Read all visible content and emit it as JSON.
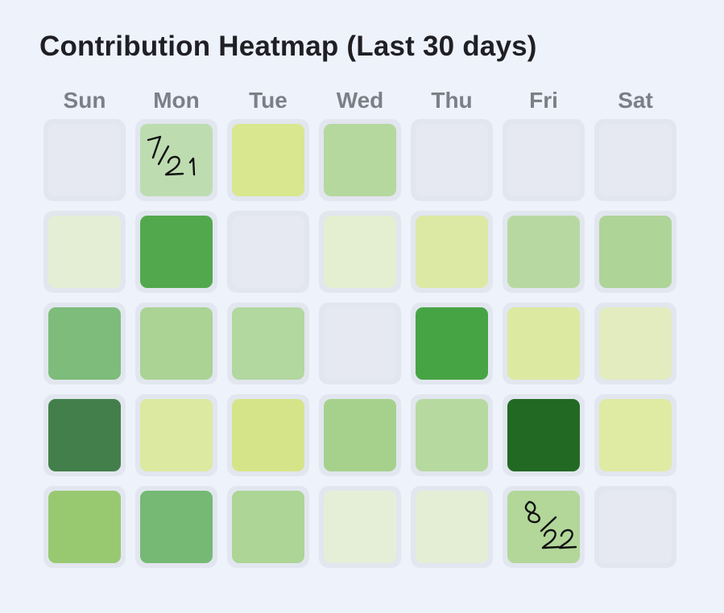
{
  "chart_data": {
    "type": "heatmap",
    "title": "Contribution Heatmap (Last 30 days)",
    "columns": [
      "Sun",
      "Mon",
      "Tue",
      "Wed",
      "Thu",
      "Fri",
      "Sat"
    ],
    "levels": [
      [
        0.0,
        0.3,
        0.2,
        0.35,
        0.0,
        0.0,
        0.0
      ],
      [
        0.1,
        0.8,
        0.0,
        0.1,
        0.15,
        0.35,
        0.4
      ],
      [
        0.55,
        0.4,
        0.35,
        0.0,
        0.85,
        0.15,
        0.12
      ],
      [
        0.9,
        0.15,
        0.2,
        0.45,
        0.35,
        1.0,
        0.15
      ],
      [
        0.5,
        0.6,
        0.4,
        0.08,
        0.1,
        0.35,
        0.0
      ]
    ],
    "colors": [
      [
        "#e6e9f2",
        "#bddcb0",
        "#d9e78f",
        "#b4d89e",
        "#e6e9f2",
        "#e6e9f2",
        "#e6e9f2"
      ],
      [
        "#e4eed5",
        "#52a94d",
        "#e6e9f2",
        "#e4efd1",
        "#dce9a4",
        "#b7d9a1",
        "#aed498"
      ],
      [
        "#7dbc7b",
        "#aad394",
        "#b2d79f",
        "#e6e9f2",
        "#47a444",
        "#dce9a1",
        "#e2ecbf"
      ],
      [
        "#437f4a",
        "#dce9a0",
        "#d6e489",
        "#a6d18c",
        "#b6d9a0",
        "#226a24",
        "#dfeaa3"
      ],
      [
        "#98c971",
        "#75b975",
        "#acd596",
        "#e5efd8",
        "#e4eed4",
        "#b2d799",
        "#e6e9f2"
      ]
    ],
    "annotations": [
      {
        "row": 0,
        "col": 1,
        "text": "7/21"
      },
      {
        "row": 4,
        "col": 5,
        "text": "8/22"
      }
    ]
  }
}
